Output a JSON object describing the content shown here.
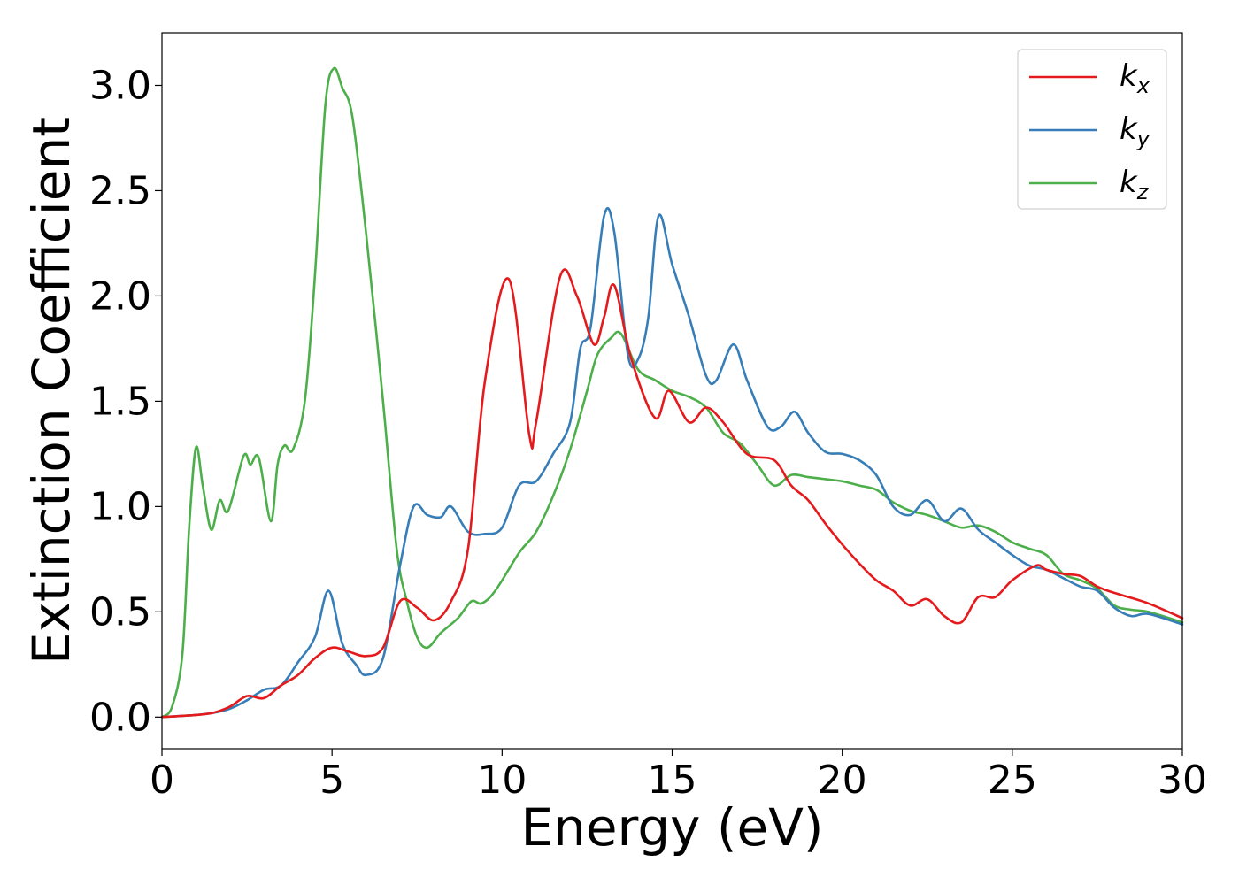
{
  "chart_data": {
    "type": "line",
    "xlabel": "Energy (eV)",
    "ylabel": "Extinction Coefficient",
    "xlim": [
      0,
      30
    ],
    "ylim": [
      -0.15,
      3.25
    ],
    "xticks": [
      0,
      5,
      10,
      15,
      20,
      25,
      30
    ],
    "yticks": [
      0.0,
      0.5,
      1.0,
      1.5,
      2.0,
      2.5,
      3.0
    ],
    "xtick_labels": [
      "0",
      "5",
      "10",
      "15",
      "20",
      "25",
      "30"
    ],
    "ytick_labels": [
      "0.0",
      "0.5",
      "1.0",
      "1.5",
      "2.0",
      "2.5",
      "3.0"
    ],
    "grid": false,
    "legend_position": "top-right",
    "series": [
      {
        "name": "k_x",
        "label_base": "k",
        "label_sub": "x",
        "color": "#e41a1c",
        "points": [
          [
            0,
            0
          ],
          [
            1,
            0.01
          ],
          [
            1.5,
            0.02
          ],
          [
            2,
            0.05
          ],
          [
            2.5,
            0.1
          ],
          [
            3,
            0.09
          ],
          [
            3.5,
            0.15
          ],
          [
            4,
            0.2
          ],
          [
            4.5,
            0.28
          ],
          [
            5,
            0.33
          ],
          [
            5.5,
            0.31
          ],
          [
            6,
            0.29
          ],
          [
            6.5,
            0.33
          ],
          [
            7,
            0.55
          ],
          [
            7.5,
            0.52
          ],
          [
            8,
            0.46
          ],
          [
            8.5,
            0.55
          ],
          [
            9,
            0.8
          ],
          [
            9.5,
            1.6
          ],
          [
            10.2,
            2.08
          ],
          [
            10.8,
            1.34
          ],
          [
            11,
            1.4
          ],
          [
            11.7,
            2.09
          ],
          [
            12.2,
            2.0
          ],
          [
            12.7,
            1.77
          ],
          [
            13,
            1.9
          ],
          [
            13.3,
            2.05
          ],
          [
            13.8,
            1.7
          ],
          [
            14.5,
            1.42
          ],
          [
            14.9,
            1.55
          ],
          [
            15.5,
            1.4
          ],
          [
            16,
            1.47
          ],
          [
            16.5,
            1.4
          ],
          [
            17.2,
            1.25
          ],
          [
            18,
            1.22
          ],
          [
            18.5,
            1.1
          ],
          [
            19,
            1.03
          ],
          [
            19.5,
            0.92
          ],
          [
            20,
            0.82
          ],
          [
            20.5,
            0.73
          ],
          [
            21,
            0.65
          ],
          [
            21.5,
            0.6
          ],
          [
            22,
            0.53
          ],
          [
            22.5,
            0.56
          ],
          [
            23,
            0.48
          ],
          [
            23.5,
            0.45
          ],
          [
            24,
            0.57
          ],
          [
            24.5,
            0.57
          ],
          [
            25,
            0.65
          ],
          [
            25.7,
            0.72
          ],
          [
            26,
            0.7
          ],
          [
            26.5,
            0.68
          ],
          [
            27,
            0.67
          ],
          [
            27.5,
            0.62
          ],
          [
            28,
            0.59
          ],
          [
            29,
            0.54
          ],
          [
            30,
            0.47
          ]
        ]
      },
      {
        "name": "k_y",
        "label_base": "k",
        "label_sub": "y",
        "color": "#377eb8",
        "points": [
          [
            0,
            0
          ],
          [
            1,
            0.01
          ],
          [
            1.5,
            0.02
          ],
          [
            2,
            0.04
          ],
          [
            2.5,
            0.08
          ],
          [
            3,
            0.13
          ],
          [
            3.5,
            0.15
          ],
          [
            4,
            0.26
          ],
          [
            4.5,
            0.38
          ],
          [
            4.9,
            0.6
          ],
          [
            5.3,
            0.35
          ],
          [
            5.7,
            0.25
          ],
          [
            6,
            0.2
          ],
          [
            6.5,
            0.28
          ],
          [
            7,
            0.72
          ],
          [
            7.4,
            1.0
          ],
          [
            7.8,
            0.96
          ],
          [
            8.2,
            0.95
          ],
          [
            8.5,
            1.0
          ],
          [
            9,
            0.88
          ],
          [
            9.5,
            0.87
          ],
          [
            10,
            0.9
          ],
          [
            10.5,
            1.1
          ],
          [
            11,
            1.12
          ],
          [
            11.5,
            1.25
          ],
          [
            12,
            1.4
          ],
          [
            12.3,
            1.75
          ],
          [
            12.6,
            1.85
          ],
          [
            13,
            2.38
          ],
          [
            13.3,
            2.3
          ],
          [
            13.7,
            1.72
          ],
          [
            14,
            1.7
          ],
          [
            14.3,
            1.9
          ],
          [
            14.6,
            2.38
          ],
          [
            15,
            2.15
          ],
          [
            15.5,
            1.9
          ],
          [
            16,
            1.62
          ],
          [
            16.3,
            1.6
          ],
          [
            16.8,
            1.77
          ],
          [
            17.2,
            1.6
          ],
          [
            17.8,
            1.38
          ],
          [
            18.2,
            1.38
          ],
          [
            18.6,
            1.45
          ],
          [
            19,
            1.35
          ],
          [
            19.5,
            1.26
          ],
          [
            20,
            1.25
          ],
          [
            20.5,
            1.22
          ],
          [
            21,
            1.15
          ],
          [
            21.5,
            1.0
          ],
          [
            22,
            0.96
          ],
          [
            22.5,
            1.03
          ],
          [
            23,
            0.93
          ],
          [
            23.5,
            0.99
          ],
          [
            24,
            0.89
          ],
          [
            24.5,
            0.83
          ],
          [
            25,
            0.77
          ],
          [
            25.5,
            0.72
          ],
          [
            26,
            0.7
          ],
          [
            26.5,
            0.66
          ],
          [
            27,
            0.62
          ],
          [
            27.5,
            0.6
          ],
          [
            28,
            0.52
          ],
          [
            28.5,
            0.48
          ],
          [
            29,
            0.49
          ],
          [
            30,
            0.44
          ]
        ]
      },
      {
        "name": "k_z",
        "label_base": "k",
        "label_sub": "z",
        "color": "#4daf4a",
        "points": [
          [
            0,
            0
          ],
          [
            0.3,
            0.05
          ],
          [
            0.6,
            0.3
          ],
          [
            0.8,
            0.9
          ],
          [
            1,
            1.28
          ],
          [
            1.2,
            1.1
          ],
          [
            1.45,
            0.89
          ],
          [
            1.7,
            1.03
          ],
          [
            1.95,
            0.98
          ],
          [
            2.4,
            1.24
          ],
          [
            2.6,
            1.2
          ],
          [
            2.85,
            1.23
          ],
          [
            3.2,
            0.93
          ],
          [
            3.4,
            1.2
          ],
          [
            3.6,
            1.29
          ],
          [
            3.85,
            1.27
          ],
          [
            4.2,
            1.5
          ],
          [
            4.5,
            2.1
          ],
          [
            4.8,
            2.9
          ],
          [
            5.05,
            3.08
          ],
          [
            5.3,
            2.99
          ],
          [
            5.6,
            2.85
          ],
          [
            6,
            2.3
          ],
          [
            6.5,
            1.5
          ],
          [
            6.9,
            0.8
          ],
          [
            7.2,
            0.55
          ],
          [
            7.5,
            0.38
          ],
          [
            7.8,
            0.33
          ],
          [
            8.2,
            0.4
          ],
          [
            8.7,
            0.47
          ],
          [
            9.1,
            0.55
          ],
          [
            9.4,
            0.54
          ],
          [
            9.8,
            0.6
          ],
          [
            10.5,
            0.78
          ],
          [
            11,
            0.88
          ],
          [
            11.5,
            1.05
          ],
          [
            12,
            1.27
          ],
          [
            12.5,
            1.55
          ],
          [
            12.8,
            1.72
          ],
          [
            13.2,
            1.8
          ],
          [
            13.5,
            1.82
          ],
          [
            14,
            1.65
          ],
          [
            14.5,
            1.6
          ],
          [
            15,
            1.55
          ],
          [
            15.5,
            1.52
          ],
          [
            16,
            1.47
          ],
          [
            16.5,
            1.35
          ],
          [
            17,
            1.3
          ],
          [
            17.5,
            1.2
          ],
          [
            18,
            1.1
          ],
          [
            18.5,
            1.15
          ],
          [
            19,
            1.14
          ],
          [
            19.5,
            1.13
          ],
          [
            20,
            1.12
          ],
          [
            20.5,
            1.1
          ],
          [
            21,
            1.08
          ],
          [
            21.5,
            1.02
          ],
          [
            22,
            0.98
          ],
          [
            22.5,
            0.96
          ],
          [
            23,
            0.93
          ],
          [
            23.5,
            0.9
          ],
          [
            24,
            0.91
          ],
          [
            24.5,
            0.88
          ],
          [
            25,
            0.83
          ],
          [
            25.5,
            0.8
          ],
          [
            26,
            0.77
          ],
          [
            26.5,
            0.68
          ],
          [
            27,
            0.65
          ],
          [
            27.5,
            0.61
          ],
          [
            28,
            0.53
          ],
          [
            28.5,
            0.51
          ],
          [
            29,
            0.5
          ],
          [
            30,
            0.45
          ]
        ]
      }
    ]
  }
}
